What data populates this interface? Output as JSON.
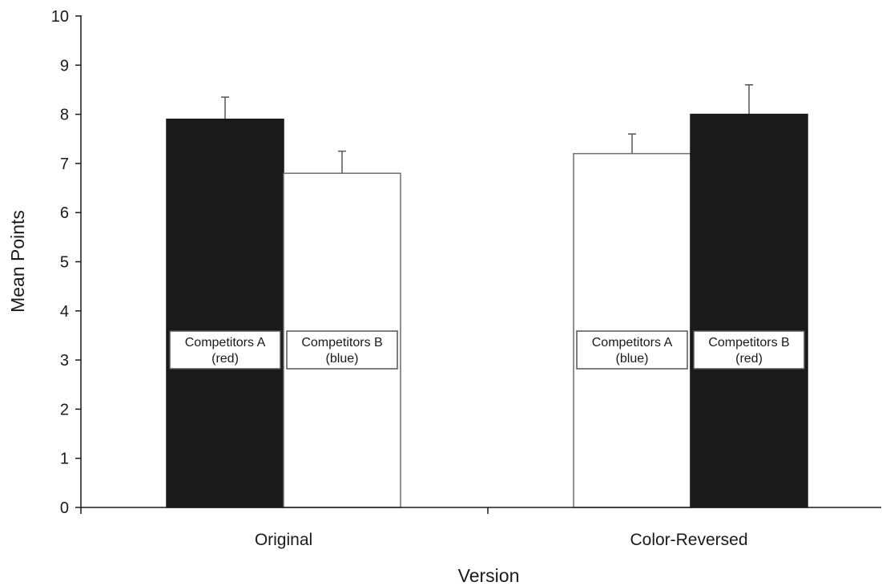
{
  "chart_data": {
    "type": "bar",
    "xlabel": "Version",
    "ylabel": "Mean Points",
    "ylim": [
      0,
      10
    ],
    "yticks": [
      "0",
      "1",
      "2",
      "3",
      "4",
      "5",
      "6",
      "7",
      "8",
      "9",
      "10"
    ],
    "grid": false,
    "legend": "none",
    "categories": [
      "Original",
      "Color-Reversed"
    ],
    "bars": [
      {
        "category": "Original",
        "value": 7.9,
        "error": 0.45,
        "fill": "#1a1a1a",
        "label_lines": [
          "Competitors A",
          "(red)"
        ]
      },
      {
        "category": "Original",
        "value": 6.8,
        "error": 0.45,
        "fill": "#ffffff",
        "label_lines": [
          "Competitors B",
          "(blue)"
        ]
      },
      {
        "category": "Color-Reversed",
        "value": 7.2,
        "error": 0.4,
        "fill": "#ffffff",
        "label_lines": [
          "Competitors A",
          "(blue)"
        ]
      },
      {
        "category": "Color-Reversed",
        "value": 8.0,
        "error": 0.6,
        "fill": "#1a1a1a",
        "label_lines": [
          "Competitors B",
          "(red)"
        ]
      }
    ]
  }
}
